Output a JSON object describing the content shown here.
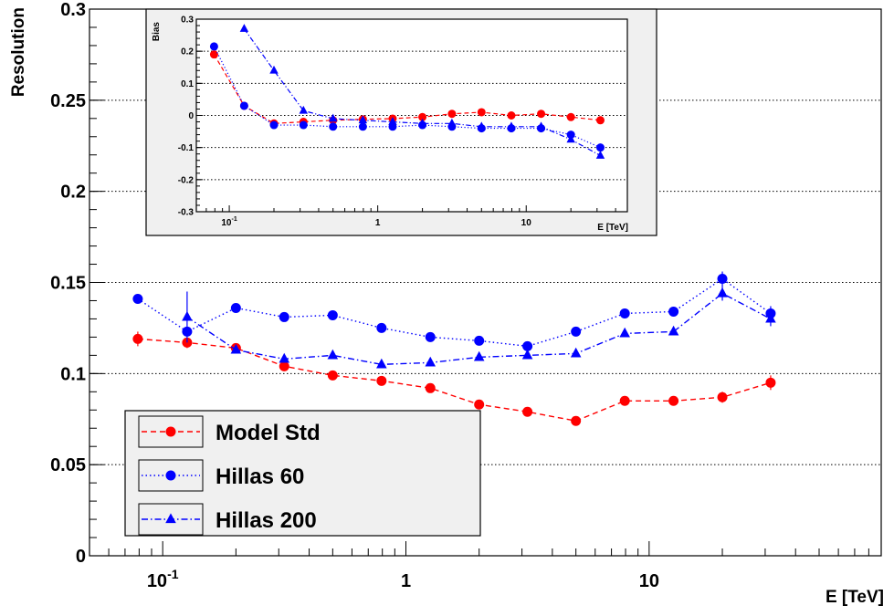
{
  "chart_data": [
    {
      "type": "line",
      "xlabel": "E [TeV]",
      "ylabel": "Resolution",
      "xscale": "log",
      "xlim": [
        0.05,
        90
      ],
      "ylim": [
        0,
        0.3
      ],
      "grid": "horizontal dotted",
      "legend_placement": "bottom-left",
      "xtick_labels": [
        "10^-1",
        "1",
        "10"
      ],
      "xtick_values": [
        0.1,
        1,
        10
      ],
      "ytick_labels": [
        "0",
        "0.05",
        "0.1",
        "0.15",
        "0.2",
        "0.25",
        "0.3"
      ],
      "ytick_values": [
        0,
        0.05,
        0.1,
        0.15,
        0.2,
        0.25,
        0.3
      ],
      "series": [
        {
          "name": "Model Std",
          "color": "#ff0000",
          "marker": "circle",
          "line": "dashed",
          "x": [
            0.079,
            0.126,
            0.2,
            0.316,
            0.5,
            0.794,
            1.26,
            2.0,
            3.16,
            5.0,
            7.94,
            12.6,
            20,
            31.6
          ],
          "y": [
            0.119,
            0.117,
            0.114,
            0.104,
            0.099,
            0.096,
            0.092,
            0.083,
            0.079,
            0.074,
            0.085,
            0.085,
            0.087,
            0.095
          ],
          "err": [
            0.004,
            0.003,
            0.002,
            0.002,
            0.002,
            0.002,
            0.002,
            0.002,
            0.002,
            0.002,
            0.002,
            0.002,
            0.003,
            0.004
          ]
        },
        {
          "name": "Hillas 60",
          "color": "#0000ff",
          "marker": "circle",
          "line": "dotted",
          "x": [
            0.079,
            0.126,
            0.2,
            0.316,
            0.5,
            0.794,
            1.26,
            2.0,
            3.16,
            5.0,
            7.94,
            12.6,
            20,
            31.6
          ],
          "y": [
            0.141,
            0.123,
            0.136,
            0.131,
            0.132,
            0.125,
            0.12,
            0.118,
            0.115,
            0.123,
            0.133,
            0.134,
            0.152,
            0.133
          ],
          "err": [
            0.002,
            0.002,
            0.002,
            0.002,
            0.002,
            0.002,
            0.002,
            0.002,
            0.002,
            0.002,
            0.002,
            0.002,
            0.004,
            0.004
          ]
        },
        {
          "name": "Hillas 200",
          "color": "#0000ff",
          "marker": "triangle",
          "line": "dash-dot",
          "x": [
            0.126,
            0.2,
            0.316,
            0.5,
            0.794,
            1.26,
            2.0,
            3.16,
            5.0,
            7.94,
            12.6,
            20,
            31.6
          ],
          "y": [
            0.131,
            0.113,
            0.108,
            0.11,
            0.105,
            0.106,
            0.109,
            0.11,
            0.111,
            0.122,
            0.123,
            0.144,
            0.13
          ],
          "err": [
            0.014,
            0.002,
            0.002,
            0.002,
            0.002,
            0.002,
            0.002,
            0.002,
            0.002,
            0.002,
            0.002,
            0.004,
            0.004
          ]
        }
      ]
    },
    {
      "type": "line",
      "xlabel": "E [TeV]",
      "ylabel": "Bias",
      "xscale": "log",
      "xlim": [
        0.06,
        48
      ],
      "ylim": [
        -0.3,
        0.3
      ],
      "grid": "horizontal dotted",
      "xtick_labels": [
        "10^-1",
        "1",
        "10"
      ],
      "xtick_values": [
        0.1,
        1,
        10
      ],
      "ytick_labels": [
        "-0.3",
        "-0.2",
        "-0.1",
        "0",
        "0.1",
        "0.2",
        "0.3"
      ],
      "ytick_values": [
        -0.3,
        -0.2,
        -0.1,
        0,
        0.1,
        0.2,
        0.3
      ],
      "series": [
        {
          "name": "Model Std",
          "color": "#ff0000",
          "marker": "circle",
          "line": "dashed",
          "x": [
            0.079,
            0.126,
            0.2,
            0.316,
            0.5,
            0.794,
            1.26,
            2.0,
            3.16,
            5.0,
            7.94,
            12.6,
            20,
            31.6
          ],
          "y": [
            0.19,
            0.03,
            -0.025,
            -0.02,
            -0.015,
            -0.012,
            -0.01,
            -0.005,
            0.005,
            0.01,
            0.0,
            0.005,
            -0.005,
            -0.015
          ]
        },
        {
          "name": "Hillas 60",
          "color": "#0000ff",
          "marker": "circle",
          "line": "dotted",
          "x": [
            0.079,
            0.126,
            0.2,
            0.316,
            0.5,
            0.794,
            1.26,
            2.0,
            3.16,
            5.0,
            7.94,
            12.6,
            20,
            31.6
          ],
          "y": [
            0.215,
            0.03,
            -0.03,
            -0.03,
            -0.035,
            -0.035,
            -0.035,
            -0.03,
            -0.035,
            -0.04,
            -0.04,
            -0.04,
            -0.06,
            -0.1
          ]
        },
        {
          "name": "Hillas 200",
          "color": "#0000ff",
          "marker": "triangle",
          "line": "dash-dot",
          "x": [
            0.126,
            0.2,
            0.316,
            0.5,
            0.794,
            1.26,
            2.0,
            3.16,
            5.0,
            7.94,
            12.6,
            20,
            31.6
          ],
          "y": [
            0.27,
            0.14,
            0.015,
            -0.01,
            -0.015,
            -0.02,
            -0.025,
            -0.025,
            -0.035,
            -0.035,
            -0.035,
            -0.075,
            -0.125
          ]
        }
      ]
    }
  ]
}
